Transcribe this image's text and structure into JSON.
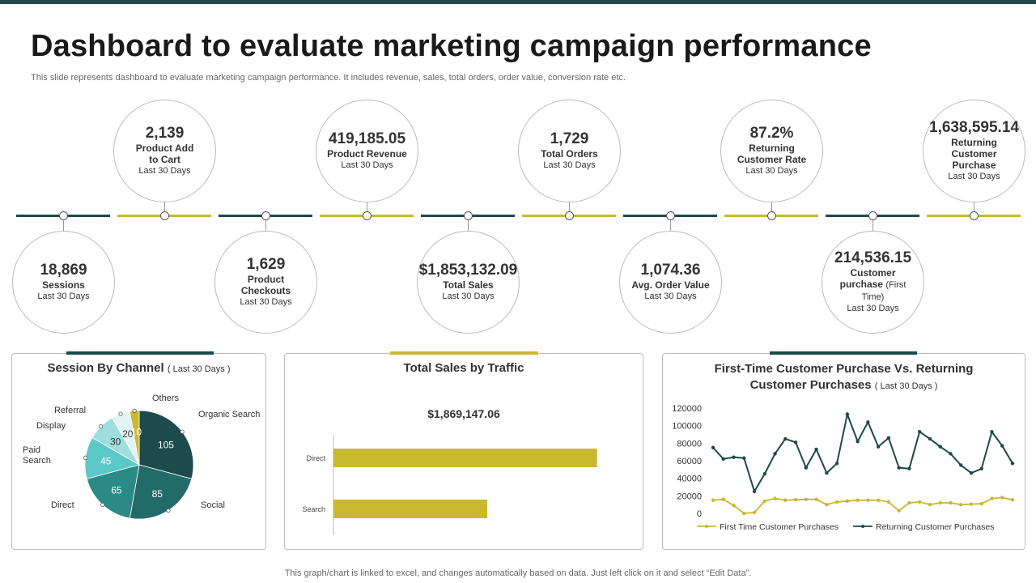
{
  "header": {
    "title": "Dashboard to evaluate marketing campaign performance",
    "subtitle": "This slide represents dashboard to evaluate marketing campaign performance. It includes revenue, sales, total orders, order value, conversion rate etc."
  },
  "colors": {
    "dark": "#1d4a4a",
    "gold": "#c9b830",
    "teal": "#2a8a86"
  },
  "kpis_top": [
    {
      "value": "2,139",
      "label": "Product Add to Cart",
      "period": "Last 30 Days"
    },
    {
      "value": "419,185.05",
      "label": "Product Revenue",
      "period": "Last 30 Days"
    },
    {
      "value": "1,729",
      "label": "Total Orders",
      "period": "Last 30 Days"
    },
    {
      "value": "87.2%",
      "label": "Returning Customer Rate",
      "period": "Last 30 Days"
    },
    {
      "value": "1,638,595.14",
      "label": "Returning Customer Purchase",
      "period": "Last 30 Days"
    }
  ],
  "kpis_bottom": [
    {
      "value": "18,869",
      "label": "Sessions",
      "period": "Last 30 Days"
    },
    {
      "value": "1,629",
      "label": "Product Checkouts",
      "period": "Last 30 Days"
    },
    {
      "value": "$1,853,132.09",
      "label": "Total Sales",
      "period": "Last 30 Days"
    },
    {
      "value": "1,074.36",
      "label": "Avg. Order Value",
      "period": "Last 30 Days"
    },
    {
      "value": "214,536.15",
      "label": "Customer purchase",
      "label_note": "(First Time)",
      "period": "Last 30 Days"
    }
  ],
  "footer": "This graph/chart is linked to excel,  and changes automatically based on data. Just left click on it and select “Edit Data”.",
  "chart_data": [
    {
      "type": "pie",
      "title": "Session By Channel",
      "title_note": "( Last 30 Days )",
      "categories": [
        "Organic Search",
        "Social",
        "Direct",
        "Paid Search",
        "Display",
        "Referral",
        "Others"
      ],
      "values": [
        105,
        85,
        65,
        45,
        30,
        20,
        10
      ],
      "colors": [
        "#1d4a4a",
        "#236b68",
        "#2a8a86",
        "#5cc9c8",
        "#9fdedd",
        "#e3f4f4",
        "#c9b830"
      ]
    },
    {
      "type": "bar",
      "title": "Total Sales by Traffic",
      "total_label": "$1,869,147.06",
      "categories": [
        "Direct",
        "Search"
      ],
      "values": [
        1200000,
        700000
      ],
      "xlim": [
        0,
        1400000
      ]
    },
    {
      "type": "line",
      "title": "First-Time Customer Purchase Vs. Returning Customer Purchases",
      "title_note": "( Last 30 Days )",
      "ylim": [
        0,
        120000
      ],
      "yticks": [
        "0",
        "20000",
        "40000",
        "60000",
        "80000",
        "100000",
        "120000"
      ],
      "x": [
        1,
        2,
        3,
        4,
        5,
        6,
        7,
        8,
        9,
        10,
        11,
        12,
        13,
        14,
        15,
        16,
        17,
        18,
        19,
        20,
        21,
        22,
        23,
        24,
        25,
        26,
        27,
        28,
        29,
        30
      ],
      "series": [
        {
          "name": "First Time Customer Purchases",
          "color": "#c9b830",
          "values": [
            15000,
            16000,
            9000,
            0,
            1000,
            14000,
            17000,
            15000,
            15500,
            16000,
            16000,
            10000,
            13000,
            14000,
            15000,
            15000,
            15000,
            13000,
            3000,
            12000,
            13000,
            10000,
            12000,
            12000,
            10000,
            10500,
            11000,
            17000,
            18000,
            15500
          ]
        },
        {
          "name": "Returning Customer Purchases",
          "color": "#1d4a4a",
          "values": [
            75000,
            62000,
            64000,
            63000,
            25000,
            45000,
            68000,
            85000,
            81000,
            52000,
            73000,
            46000,
            57000,
            113000,
            82000,
            104000,
            76000,
            86000,
            52000,
            51000,
            93000,
            85000,
            76000,
            68000,
            55000,
            46000,
            51000,
            93000,
            77000,
            57000
          ]
        }
      ]
    }
  ]
}
